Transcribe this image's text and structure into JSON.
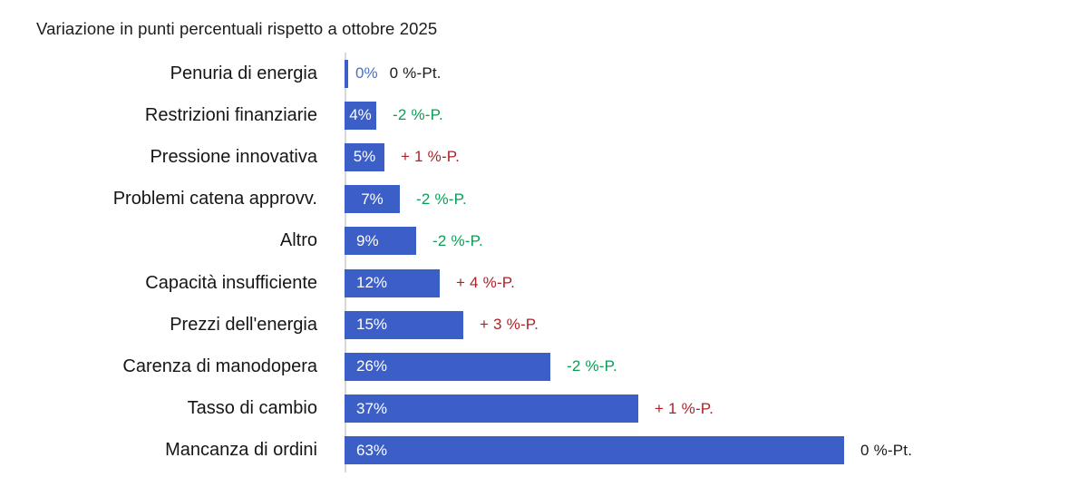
{
  "title": "Variazione in punti percentuali rispetto a ottobre 2025",
  "chart_data": {
    "type": "bar",
    "orientation": "horizontal",
    "title": "Variazione in punti percentuali rispetto a ottobre 2025",
    "categories": [
      "Penuria di energia",
      "Restrizioni finanziarie",
      "Pressione innovativa",
      "Problemi catena approvv.",
      "Altro",
      "Capacità insufficiente",
      "Prezzi dell'energia",
      "Carenza di manodopera",
      "Tasso di cambio",
      "Mancanza di ordini"
    ],
    "values": [
      0,
      4,
      5,
      7,
      9,
      12,
      15,
      26,
      37,
      63
    ],
    "value_labels": [
      "0%",
      "4%",
      "5%",
      "7%",
      "9%",
      "12%",
      "15%",
      "26%",
      "37%",
      "63%"
    ],
    "deltas": [
      0,
      -2,
      1,
      -2,
      -2,
      4,
      3,
      -2,
      1,
      0
    ],
    "delta_labels": [
      "0 %-Pt.",
      "-2 %-P.",
      "+ 1 %-P.",
      "-2 %-P.",
      "-2 %-P.",
      "+ 4 %-P.",
      "+ 3 %-P.",
      "-2 %-P.",
      "+ 1 %-P.",
      "0 %-Pt."
    ],
    "xlim": [
      0,
      63
    ],
    "grid": false,
    "legend": false,
    "colors": {
      "bar": "#3b5fc7",
      "bar_value_text": "#ffffff",
      "zero_value_text": "#4472c4",
      "delta_negative": "#0a9d56",
      "delta_positive": "#ab2328",
      "delta_zero": "#1a1a1a",
      "category_text": "#161616",
      "axis_line": "#d8d8d8"
    }
  }
}
